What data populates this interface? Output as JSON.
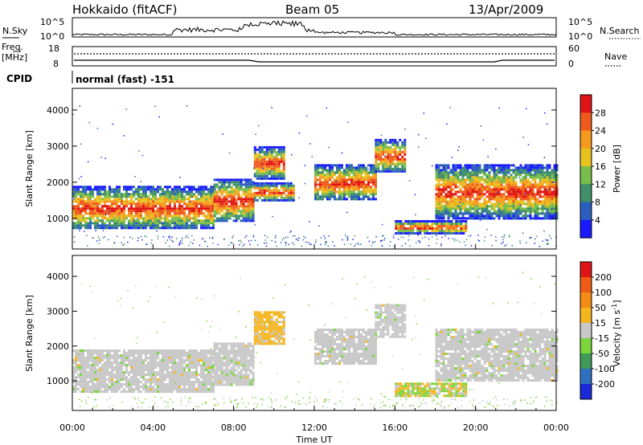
{
  "header": {
    "radar": "Hokkaido (fitACF)",
    "beam": "Beam 05",
    "date": "13/Apr/2009"
  },
  "top_panel": {
    "left_label": "N.Sky",
    "right_label": "N.Search",
    "left_ticks": [
      "10^5",
      "10^0"
    ],
    "right_ticks": [
      "10^5",
      "10^0"
    ]
  },
  "freq_panel": {
    "left_label_1": "Freq.",
    "left_label_2": "[MHz]",
    "left_ticks": [
      "18",
      "8"
    ],
    "right_ticks": [
      "60",
      "0"
    ],
    "right_label": "Nave"
  },
  "cpid": {
    "label": "CPID",
    "value": "normal (fast) -151"
  },
  "chart_data": [
    {
      "type": "heatmap",
      "name": "power",
      "ylabel": "Slant Range [km]",
      "y_ticks": [
        "1000",
        "2000",
        "3000",
        "4000"
      ],
      "yrange_km": [
        150,
        4600
      ],
      "colorbar_label": "Power [dB]",
      "colorbar_ticks": [
        "4",
        "8",
        "12",
        "16",
        "20",
        "24",
        "28"
      ],
      "colorbar_colors": [
        "#1a1aff",
        "#2a5fbf",
        "#3f8f6a",
        "#79bd4a",
        "#e8c21f",
        "#f59a1e",
        "#ef5a1c",
        "#e01414"
      ],
      "bands": [
        {
          "start_hr": 0.0,
          "end_hr": 7.0,
          "top_km": 1900,
          "bottom_km": 700
        },
        {
          "start_hr": 7.0,
          "end_hr": 9.0,
          "top_km": 2100,
          "bottom_km": 900
        },
        {
          "start_hr": 9.0,
          "end_hr": 10.5,
          "top_km": 3000,
          "bottom_km": 2100
        },
        {
          "start_hr": 9.0,
          "end_hr": 11.0,
          "top_km": 2000,
          "bottom_km": 1500
        },
        {
          "start_hr": 12.0,
          "end_hr": 15.0,
          "top_km": 2500,
          "bottom_km": 1500
        },
        {
          "start_hr": 15.0,
          "end_hr": 16.5,
          "top_km": 3200,
          "bottom_km": 2300
        },
        {
          "start_hr": 16.0,
          "end_hr": 19.5,
          "top_km": 950,
          "bottom_km": 600
        },
        {
          "start_hr": 18.0,
          "end_hr": 24.0,
          "top_km": 2500,
          "bottom_km": 1000
        }
      ]
    },
    {
      "type": "heatmap",
      "name": "velocity",
      "ylabel": "Slant Range [km]",
      "y_ticks": [
        "1000",
        "2000",
        "3000",
        "4000"
      ],
      "yrange_km": [
        150,
        4600
      ],
      "colorbar_label": "Velocity [m s^-1]",
      "colorbar_ticks": [
        "200",
        "100",
        "50",
        "15",
        "-15",
        "-50",
        "-100",
        "-200"
      ],
      "colorbar_colors": [
        "#1a2ad8",
        "#2f6fbf",
        "#3e9b5a",
        "#7ad63a",
        "#c8c8c8",
        "#f5b51e",
        "#f58a14",
        "#ef5a14",
        "#e01414"
      ],
      "bands": [
        {
          "start_hr": 0.0,
          "end_hr": 7.0,
          "top_km": 1900,
          "bottom_km": 700
        },
        {
          "start_hr": 7.0,
          "end_hr": 9.0,
          "top_km": 2100,
          "bottom_km": 900
        },
        {
          "start_hr": 9.0,
          "end_hr": 10.5,
          "top_km": 3000,
          "bottom_km": 2100
        },
        {
          "start_hr": 12.0,
          "end_hr": 15.0,
          "top_km": 2500,
          "bottom_km": 1500
        },
        {
          "start_hr": 15.0,
          "end_hr": 16.5,
          "top_km": 3200,
          "bottom_km": 2300
        },
        {
          "start_hr": 16.0,
          "end_hr": 19.5,
          "top_km": 950,
          "bottom_km": 600
        },
        {
          "start_hr": 18.0,
          "end_hr": 24.0,
          "top_km": 2500,
          "bottom_km": 1000
        }
      ]
    }
  ],
  "x_axis": {
    "label": "Time UT",
    "ticks": [
      "00:00",
      "04:00",
      "08:00",
      "12:00",
      "16:00",
      "20:00",
      "00:00"
    ],
    "tick_hours": [
      0,
      4,
      8,
      12,
      16,
      20,
      24
    ]
  }
}
